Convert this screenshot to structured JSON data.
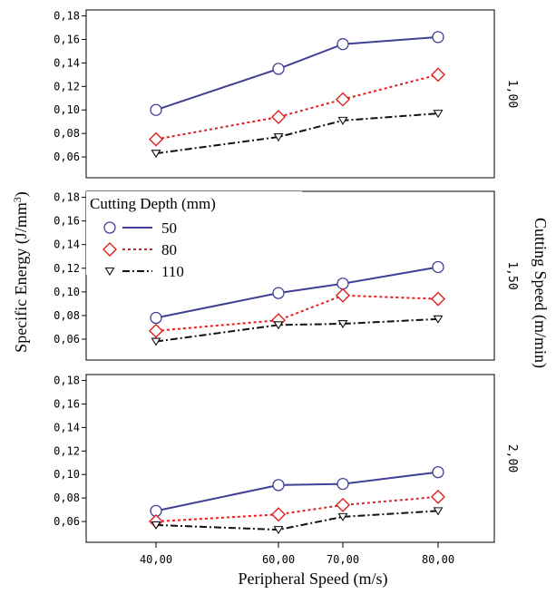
{
  "chart_data": {
    "type": "line",
    "title": "",
    "xlabel": "Peripheral Speed (m/s)",
    "ylabel": "Specific Energy (J/mm",
    "ylabel_superscript": "3",
    "ylabel_close": ")",
    "right_label": "Cutting Speed (m/min)",
    "categories": [
      "40,00",
      "60,00",
      "70,00",
      "80,00"
    ],
    "ylim": [
      0.05,
      0.182
    ],
    "yticks": [
      {
        "value": 0.06,
        "label": "0,06"
      },
      {
        "value": 0.08,
        "label": "0,08"
      },
      {
        "value": 0.1,
        "label": "0,10"
      },
      {
        "value": 0.12,
        "label": "0,12"
      },
      {
        "value": 0.14,
        "label": "0,14"
      },
      {
        "value": 0.16,
        "label": "0,16"
      },
      {
        "value": 0.18,
        "label": "0,18"
      }
    ],
    "legend": {
      "title": "Cutting Depth (mm)",
      "placement": "top-left of middle panel",
      "entries": [
        {
          "label": "50",
          "color": "#3f3f96",
          "marker": "circle",
          "dash": "solid"
        },
        {
          "label": "80",
          "color": "#e02020",
          "marker": "diamond",
          "dash": "dotted"
        },
        {
          "label": "110",
          "color": "#111111",
          "marker": "triangle-down",
          "dash": "dashdot"
        }
      ]
    },
    "panels": [
      {
        "facet_label": "1,00",
        "series": [
          {
            "name": "50",
            "values": [
              0.1,
              0.135,
              0.156,
              0.162
            ]
          },
          {
            "name": "80",
            "values": [
              0.075,
              0.094,
              0.109,
              0.13
            ]
          },
          {
            "name": "110",
            "values": [
              0.063,
              0.077,
              0.091,
              0.097
            ]
          }
        ]
      },
      {
        "facet_label": "1,50",
        "series": [
          {
            "name": "50",
            "values": [
              0.078,
              0.099,
              0.107,
              0.121
            ]
          },
          {
            "name": "80",
            "values": [
              0.067,
              0.076,
              0.097,
              0.094
            ]
          },
          {
            "name": "110",
            "values": [
              0.058,
              0.072,
              0.073,
              0.077
            ]
          }
        ]
      },
      {
        "facet_label": "2,00",
        "series": [
          {
            "name": "50",
            "values": [
              0.069,
              0.091,
              0.092,
              0.102
            ]
          },
          {
            "name": "80",
            "values": [
              0.06,
              0.066,
              0.074,
              0.081
            ]
          },
          {
            "name": "110",
            "values": [
              0.057,
              0.053,
              0.064,
              0.069
            ]
          }
        ]
      }
    ]
  }
}
